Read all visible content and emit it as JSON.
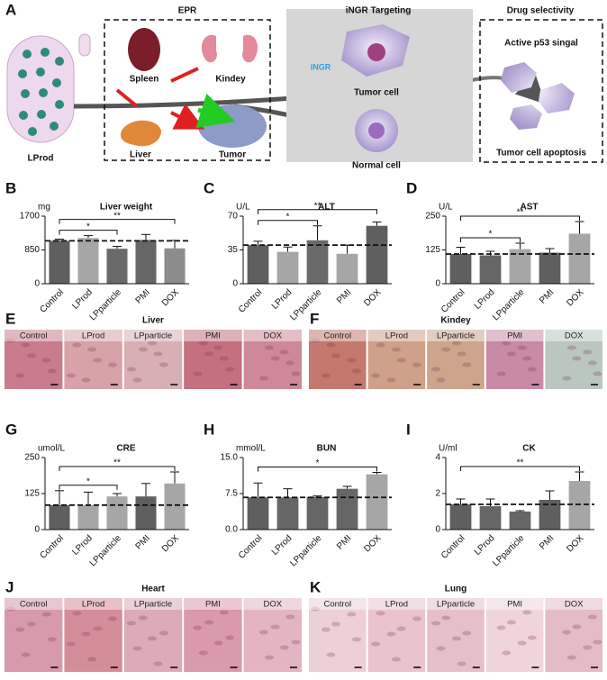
{
  "schematic": {
    "label": "A",
    "lprod": "LProd",
    "epr": {
      "title": "EPR",
      "organs": [
        "Spleen",
        "Kindey",
        "Liver",
        "Tumor"
      ]
    },
    "targeting": {
      "title": "iNGR Targeting",
      "ligand": "iNGR",
      "tumor": "Tumor cell",
      "normal": "Normal cell"
    },
    "selectivity": {
      "title": "Drug selectivity",
      "top": "Active p53 singal",
      "bottom": "Tumor cell apoptosis"
    }
  },
  "chart_data": [
    {
      "type": "bar",
      "label": "B",
      "title": "Liver weight",
      "unit": "mg",
      "categories": [
        "Control",
        "LProd",
        "LPparticle",
        "PMI",
        "DOX"
      ],
      "values": [
        1080,
        1150,
        880,
        1100,
        890
      ],
      "errors": [
        40,
        60,
        60,
        140,
        200
      ],
      "colors": [
        "#5f5f5f",
        "#a6a6a6",
        "#6a6a6a",
        "#666666",
        "#8c8c8c"
      ],
      "ylim": [
        0,
        1700
      ],
      "yticks": [
        0,
        850,
        1700
      ],
      "reference_line": 1080,
      "significance": [
        {
          "label": "*",
          "pair": [
            "Control",
            "LPparticle"
          ]
        },
        {
          "label": "**",
          "pair": [
            "Control",
            "DOX"
          ]
        }
      ]
    },
    {
      "type": "bar",
      "label": "C",
      "title": "ALT",
      "unit": "U/L",
      "categories": [
        "Control",
        "LProd",
        "LPparticle",
        "PMI",
        "DOX"
      ],
      "values": [
        40,
        33,
        45,
        31,
        60
      ],
      "errors": [
        4,
        5,
        15,
        9,
        4
      ],
      "colors": [
        "#5f5f5f",
        "#a6a6a6",
        "#6a6a6a",
        "#a6a6a6",
        "#5f5f5f"
      ],
      "ylim": [
        0,
        70
      ],
      "yticks": [
        0,
        35,
        70
      ],
      "reference_line": 40,
      "significance": [
        {
          "label": "*",
          "pair": [
            "Control",
            "LPparticle"
          ]
        },
        {
          "label": "**",
          "pair": [
            "Control",
            "DOX"
          ]
        }
      ]
    },
    {
      "type": "bar",
      "label": "D",
      "title": "AST",
      "unit": "U/L",
      "categories": [
        "Control",
        "LProd",
        "LPparticle",
        "PMI",
        "DOX"
      ],
      "values": [
        110,
        105,
        128,
        115,
        185
      ],
      "errors": [
        25,
        15,
        22,
        15,
        45
      ],
      "colors": [
        "#5f5f5f",
        "#666666",
        "#a6a6a6",
        "#5f5f5f",
        "#a6a6a6"
      ],
      "ylim": [
        0,
        250
      ],
      "yticks": [
        0,
        125,
        250
      ],
      "reference_line": 110,
      "significance": [
        {
          "label": "*",
          "pair": [
            "Control",
            "LPparticle"
          ]
        },
        {
          "label": "**",
          "pair": [
            "Control",
            "DOX"
          ]
        }
      ]
    },
    {
      "type": "bar",
      "label": "G",
      "title": "CRE",
      "unit": "umol/L",
      "categories": [
        "Control",
        "LProd",
        "LPparticle",
        "PMI",
        "DOX"
      ],
      "values": [
        85,
        85,
        115,
        115,
        160
      ],
      "errors": [
        50,
        45,
        10,
        45,
        40
      ],
      "colors": [
        "#5f5f5f",
        "#a6a6a6",
        "#a6a6a6",
        "#5f5f5f",
        "#a6a6a6"
      ],
      "ylim": [
        0,
        250
      ],
      "yticks": [
        0,
        125,
        250
      ],
      "reference_line": 85,
      "significance": [
        {
          "label": "*",
          "pair": [
            "Control",
            "LPparticle"
          ]
        },
        {
          "label": "**",
          "pair": [
            "Control",
            "DOX"
          ]
        }
      ]
    },
    {
      "type": "bar",
      "label": "H",
      "title": "BUN",
      "unit": "mmol/L",
      "categories": [
        "Control",
        "LProd",
        "LPparticle",
        "PMI",
        "DOX"
      ],
      "values": [
        6.7,
        6.7,
        6.8,
        8.5,
        11.5
      ],
      "errors": [
        3,
        1.8,
        0.2,
        0.5,
        0.4
      ],
      "colors": [
        "#5f5f5f",
        "#666666",
        "#666666",
        "#666666",
        "#a6a6a6"
      ],
      "ylim": [
        0,
        15
      ],
      "yticks": [
        {
          "value": 0,
          "label": "0.0"
        },
        7.5,
        {
          "value": 15,
          "label": "15.0"
        }
      ],
      "reference_line": 6.7,
      "significance": [
        {
          "label": "*",
          "pair": [
            "Control",
            "DOX"
          ]
        }
      ]
    },
    {
      "type": "bar",
      "label": "I",
      "title": "CK",
      "unit": "U/ml",
      "categories": [
        "Control",
        "LProd",
        "LPparticle",
        "PMI",
        "DOX"
      ],
      "values": [
        1.4,
        1.3,
        1.0,
        1.65,
        2.7
      ],
      "errors": [
        0.3,
        0.4,
        0.05,
        0.5,
        0.5
      ],
      "colors": [
        "#5f5f5f",
        "#666666",
        "#666666",
        "#5f5f5f",
        "#a6a6a6"
      ],
      "ylim": [
        0,
        4
      ],
      "yticks": [
        0,
        2,
        4
      ],
      "reference_line": 1.4,
      "significance": [
        {
          "label": "**",
          "pair": [
            "Control",
            "DOX"
          ]
        }
      ]
    }
  ],
  "histology": [
    {
      "label": "E",
      "title": "Liver",
      "panels": [
        "Control",
        "LProd",
        "LPparticle",
        "PMI",
        "DOX"
      ]
    },
    {
      "label": "F",
      "title": "Kindey",
      "panels": [
        "Control",
        "LProd",
        "LPparticle",
        "PMI",
        "DOX"
      ]
    },
    {
      "label": "J",
      "title": "Heart",
      "panels": [
        "Control",
        "LProd",
        "LPparticle",
        "PMI",
        "DOX"
      ]
    },
    {
      "label": "K",
      "title": "Lung",
      "panels": [
        "Control",
        "LProd",
        "LPparticle",
        "PMI",
        "DOX"
      ]
    }
  ]
}
